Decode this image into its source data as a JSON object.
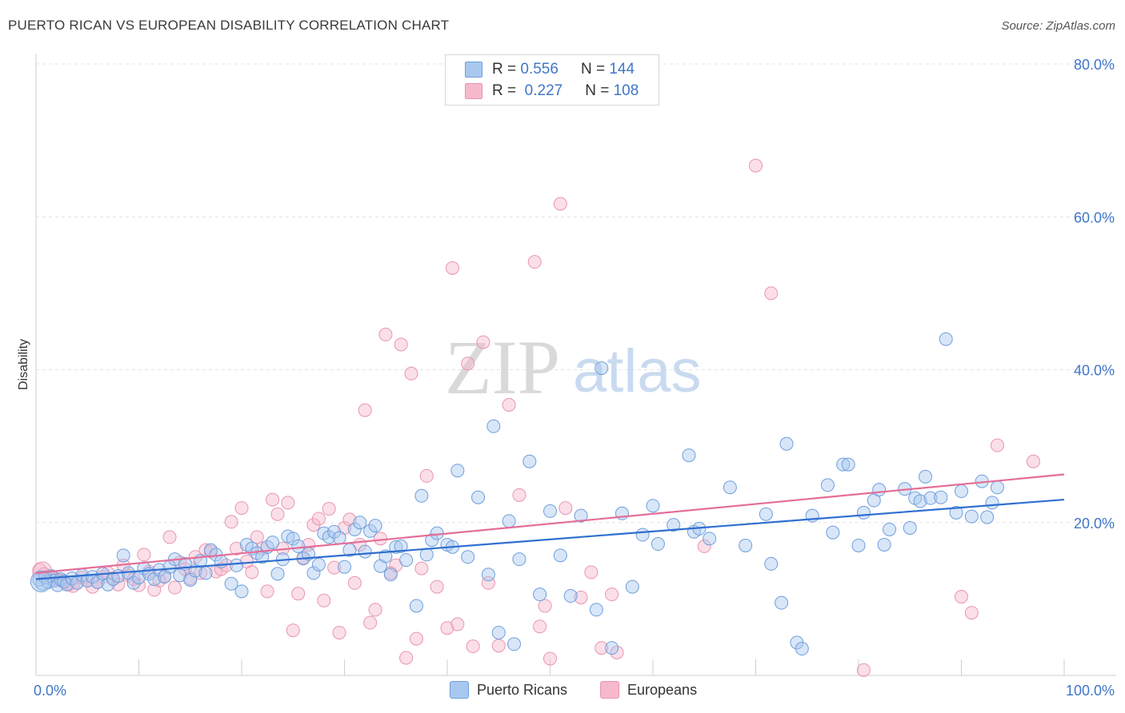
{
  "title": "PUERTO RICAN VS EUROPEAN DISABILITY CORRELATION CHART",
  "source": "Source: ZipAtlas.com",
  "watermark": {
    "zip": "ZIP",
    "atlas": "atlas"
  },
  "legend": {
    "series1": {
      "r_label": "R =",
      "r_value": "0.556",
      "n_label": "N =",
      "n_value": "144"
    },
    "series2": {
      "r_label": "R =",
      "r_value": "0.227",
      "n_label": "N =",
      "n_value": "108"
    }
  },
  "bottom_legend": {
    "series1": "Puerto Ricans",
    "series2": "Europeans"
  },
  "chart_data": {
    "type": "scatter",
    "title": "PUERTO RICAN VS EUROPEAN DISABILITY CORRELATION CHART",
    "xlabel": "",
    "ylabel": "Disability",
    "xlim": [
      0,
      100
    ],
    "ylim": [
      0,
      80
    ],
    "x_tick_labels": [
      "0.0%",
      "100.0%"
    ],
    "y_ticks": [
      20,
      40,
      60,
      80
    ],
    "y_tick_labels": [
      "20.0%",
      "40.0%",
      "60.0%",
      "80.0%"
    ],
    "grid": true,
    "legend_placement": "top-center",
    "colors": {
      "series1_fill": "#a9c8f0",
      "series1_stroke": "#6f9fdc",
      "series1_line": "#2f6fcf",
      "series2_fill": "#f6b9cc",
      "series2_stroke": "#e895b0",
      "series2_line": "#e46e98",
      "label": "#3f76c9"
    },
    "series": [
      {
        "name": "Puerto Ricans",
        "trend": [
          [
            0,
            12.6
          ],
          [
            100,
            23.0
          ]
        ],
        "points": [
          [
            0.3,
            12.5
          ],
          [
            0.6,
            12.0
          ],
          [
            0.9,
            12.8
          ],
          [
            1.2,
            12.2
          ],
          [
            1.5,
            13.0
          ],
          [
            1.8,
            12.4
          ],
          [
            2.1,
            11.8
          ],
          [
            2.4,
            12.6
          ],
          [
            2.7,
            12.3
          ],
          [
            3.0,
            11.9
          ],
          [
            3.5,
            12.7
          ],
          [
            4.0,
            12.1
          ],
          [
            4.5,
            13.1
          ],
          [
            5.0,
            12.4
          ],
          [
            5.5,
            12.9
          ],
          [
            6.0,
            12.2
          ],
          [
            6.5,
            13.3
          ],
          [
            7.0,
            11.9
          ],
          [
            7.5,
            12.6
          ],
          [
            8.0,
            13.0
          ],
          [
            8.5,
            15.7
          ],
          [
            9.0,
            13.4
          ],
          [
            9.5,
            12.1
          ],
          [
            10.0,
            12.8
          ],
          [
            10.5,
            14.0
          ],
          [
            11.0,
            13.3
          ],
          [
            11.5,
            12.6
          ],
          [
            12.0,
            13.8
          ],
          [
            12.5,
            12.9
          ],
          [
            13.0,
            14.2
          ],
          [
            13.5,
            15.2
          ],
          [
            14.0,
            13.1
          ],
          [
            14.5,
            14.6
          ],
          [
            15.0,
            12.5
          ],
          [
            15.5,
            13.7
          ],
          [
            16.0,
            15.0
          ],
          [
            16.5,
            13.4
          ],
          [
            17.0,
            16.4
          ],
          [
            17.5,
            15.8
          ],
          [
            18.0,
            14.9
          ],
          [
            19.0,
            12.0
          ],
          [
            19.5,
            14.4
          ],
          [
            20.0,
            11.0
          ],
          [
            20.5,
            17.1
          ],
          [
            21.0,
            16.6
          ],
          [
            21.5,
            16.0
          ],
          [
            22.0,
            15.5
          ],
          [
            22.5,
            16.8
          ],
          [
            23.0,
            17.4
          ],
          [
            23.5,
            13.3
          ],
          [
            24.0,
            15.2
          ],
          [
            24.5,
            18.2
          ],
          [
            25.0,
            17.9
          ],
          [
            25.5,
            16.9
          ],
          [
            26.0,
            15.3
          ],
          [
            26.5,
            15.9
          ],
          [
            27.0,
            13.4
          ],
          [
            27.5,
            14.5
          ],
          [
            28.0,
            18.6
          ],
          [
            28.5,
            18.1
          ],
          [
            29.0,
            18.8
          ],
          [
            29.5,
            18.0
          ],
          [
            30.0,
            14.2
          ],
          [
            30.5,
            16.4
          ],
          [
            31.0,
            19.1
          ],
          [
            31.5,
            20.0
          ],
          [
            32.0,
            16.2
          ],
          [
            32.5,
            18.9
          ],
          [
            33.0,
            19.6
          ],
          [
            33.5,
            14.3
          ],
          [
            34.0,
            15.6
          ],
          [
            34.5,
            13.2
          ],
          [
            35.0,
            16.8
          ],
          [
            35.5,
            16.9
          ],
          [
            36.0,
            15.1
          ],
          [
            37.0,
            9.1
          ],
          [
            37.5,
            23.5
          ],
          [
            38.0,
            15.8
          ],
          [
            38.5,
            17.7
          ],
          [
            39.0,
            18.6
          ],
          [
            40.0,
            17.1
          ],
          [
            40.5,
            16.8
          ],
          [
            41.0,
            26.8
          ],
          [
            42.0,
            15.5
          ],
          [
            43.0,
            23.3
          ],
          [
            44.0,
            13.2
          ],
          [
            44.5,
            32.6
          ],
          [
            45.0,
            5.6
          ],
          [
            46.0,
            20.2
          ],
          [
            46.5,
            4.1
          ],
          [
            47.0,
            15.2
          ],
          [
            48.0,
            28.0
          ],
          [
            49.0,
            10.6
          ],
          [
            50.0,
            21.5
          ],
          [
            51.0,
            15.7
          ],
          [
            52.0,
            10.4
          ],
          [
            53.0,
            20.9
          ],
          [
            54.5,
            8.6
          ],
          [
            55.0,
            40.2
          ],
          [
            56.0,
            3.6
          ],
          [
            57.0,
            21.2
          ],
          [
            58.0,
            11.6
          ],
          [
            59.0,
            18.4
          ],
          [
            60.0,
            22.2
          ],
          [
            60.5,
            17.2
          ],
          [
            62.0,
            19.7
          ],
          [
            63.5,
            28.8
          ],
          [
            64.0,
            18.8
          ],
          [
            64.5,
            19.2
          ],
          [
            65.5,
            17.9
          ],
          [
            67.5,
            24.6
          ],
          [
            69.0,
            17.0
          ],
          [
            71.0,
            21.1
          ],
          [
            71.5,
            14.6
          ],
          [
            72.5,
            9.5
          ],
          [
            73.0,
            30.3
          ],
          [
            74.0,
            4.3
          ],
          [
            74.5,
            3.5
          ],
          [
            75.5,
            20.9
          ],
          [
            77.0,
            24.9
          ],
          [
            77.5,
            18.7
          ],
          [
            78.5,
            27.6
          ],
          [
            79.0,
            27.6
          ],
          [
            80.0,
            17.0
          ],
          [
            80.5,
            21.3
          ],
          [
            81.5,
            22.9
          ],
          [
            82.0,
            24.3
          ],
          [
            82.5,
            17.1
          ],
          [
            83.0,
            19.1
          ],
          [
            84.5,
            24.4
          ],
          [
            85.0,
            19.3
          ],
          [
            85.5,
            23.2
          ],
          [
            86.0,
            22.8
          ],
          [
            86.5,
            26.0
          ],
          [
            87.0,
            23.2
          ],
          [
            88.0,
            23.3
          ],
          [
            88.5,
            44.0
          ],
          [
            89.5,
            21.3
          ],
          [
            90.0,
            24.1
          ],
          [
            91.0,
            20.8
          ],
          [
            92.0,
            25.4
          ],
          [
            92.5,
            20.7
          ],
          [
            93.0,
            22.6
          ],
          [
            93.5,
            24.6
          ]
        ]
      },
      {
        "name": "Europeans",
        "trend": [
          [
            0,
            13.4
          ],
          [
            100,
            26.3
          ]
        ],
        "points": [
          [
            0.4,
            13.8
          ],
          [
            0.8,
            13.3
          ],
          [
            1.2,
            13.0
          ],
          [
            1.6,
            12.9
          ],
          [
            2.0,
            12.6
          ],
          [
            2.4,
            12.4
          ],
          [
            2.8,
            12.2
          ],
          [
            3.2,
            11.9
          ],
          [
            3.6,
            11.7
          ],
          [
            4.0,
            12.1
          ],
          [
            4.5,
            12.8
          ],
          [
            5.0,
            12.4
          ],
          [
            5.5,
            11.6
          ],
          [
            6.0,
            12.2
          ],
          [
            6.5,
            12.9
          ],
          [
            7.0,
            13.4
          ],
          [
            7.5,
            12.7
          ],
          [
            8.0,
            11.9
          ],
          [
            8.5,
            14.4
          ],
          [
            9.0,
            13.1
          ],
          [
            9.5,
            12.6
          ],
          [
            10.0,
            11.8
          ],
          [
            10.5,
            15.8
          ],
          [
            11.0,
            13.6
          ],
          [
            11.5,
            11.2
          ],
          [
            12.0,
            12.4
          ],
          [
            12.5,
            13.0
          ],
          [
            13.0,
            18.1
          ],
          [
            13.5,
            11.5
          ],
          [
            14.0,
            14.8
          ],
          [
            14.5,
            13.9
          ],
          [
            15.0,
            12.7
          ],
          [
            15.5,
            15.5
          ],
          [
            16.0,
            13.4
          ],
          [
            16.5,
            16.4
          ],
          [
            17.0,
            16.2
          ],
          [
            17.5,
            13.6
          ],
          [
            18.0,
            13.9
          ],
          [
            18.5,
            14.4
          ],
          [
            19.0,
            20.1
          ],
          [
            19.5,
            16.6
          ],
          [
            20.0,
            21.9
          ],
          [
            20.5,
            14.9
          ],
          [
            21.0,
            13.5
          ],
          [
            21.5,
            18.1
          ],
          [
            22.0,
            16.6
          ],
          [
            22.5,
            11.0
          ],
          [
            23.0,
            23.0
          ],
          [
            23.5,
            21.1
          ],
          [
            24.0,
            16.6
          ],
          [
            24.5,
            22.6
          ],
          [
            25.0,
            5.9
          ],
          [
            25.5,
            10.7
          ],
          [
            26.0,
            15.4
          ],
          [
            26.5,
            17.1
          ],
          [
            27.0,
            19.7
          ],
          [
            27.5,
            20.5
          ],
          [
            28.0,
            9.8
          ],
          [
            28.5,
            21.8
          ],
          [
            29.0,
            14.1
          ],
          [
            29.5,
            5.6
          ],
          [
            30.0,
            19.3
          ],
          [
            30.5,
            20.4
          ],
          [
            31.0,
            12.1
          ],
          [
            31.5,
            17.1
          ],
          [
            32.0,
            34.7
          ],
          [
            32.5,
            6.9
          ],
          [
            33.0,
            8.6
          ],
          [
            33.5,
            17.9
          ],
          [
            34.0,
            44.6
          ],
          [
            34.5,
            13.4
          ],
          [
            35.0,
            14.4
          ],
          [
            35.5,
            43.3
          ],
          [
            36.0,
            2.3
          ],
          [
            36.5,
            39.5
          ],
          [
            37.0,
            4.8
          ],
          [
            37.5,
            14.0
          ],
          [
            38.0,
            26.1
          ],
          [
            39.0,
            11.6
          ],
          [
            40.0,
            6.2
          ],
          [
            40.5,
            53.3
          ],
          [
            41.0,
            6.7
          ],
          [
            42.0,
            40.8
          ],
          [
            42.5,
            3.8
          ],
          [
            43.5,
            43.6
          ],
          [
            44.0,
            12.1
          ],
          [
            45.0,
            3.9
          ],
          [
            46.0,
            35.4
          ],
          [
            47.0,
            23.6
          ],
          [
            48.5,
            54.1
          ],
          [
            49.0,
            6.4
          ],
          [
            49.5,
            9.1
          ],
          [
            50.0,
            2.2
          ],
          [
            51.0,
            61.7
          ],
          [
            51.5,
            21.9
          ],
          [
            53.0,
            10.2
          ],
          [
            54.0,
            13.5
          ],
          [
            55.0,
            3.6
          ],
          [
            56.0,
            10.6
          ],
          [
            56.5,
            3.0
          ],
          [
            65.0,
            16.9
          ],
          [
            70.0,
            66.7
          ],
          [
            71.5,
            50.0
          ],
          [
            80.5,
            0.7
          ],
          [
            90.0,
            10.3
          ],
          [
            91.0,
            8.2
          ],
          [
            93.5,
            30.1
          ],
          [
            97.0,
            28.0
          ]
        ]
      }
    ]
  }
}
